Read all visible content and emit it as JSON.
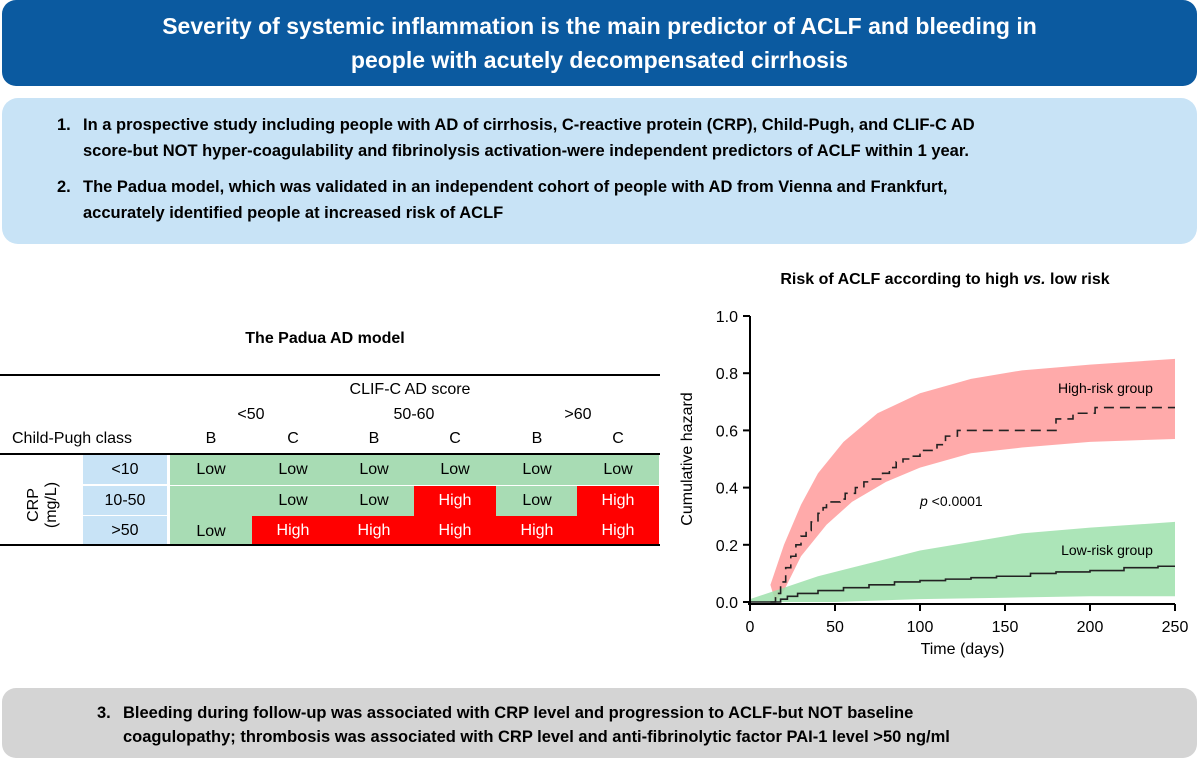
{
  "banner": {
    "title_line1": "Severity of systemic inflammation is the main predictor of ACLF and bleeding in",
    "title_line2": "people with acutely decompensated cirrhosis"
  },
  "findings": [
    {
      "num": "1.",
      "line1": "In a prospective study including people with AD of cirrhosis, C-reactive protein (CRP), Child-Pugh, and CLIF-C AD",
      "line2": "score-but NOT hyper-coagulability and fibrinolysis activation-were independent predictors of ACLF within 1 year."
    },
    {
      "num": "2.",
      "line1": "The Padua model, which was validated in an independent cohort of people with AD from Vienna and Frankfurt,",
      "line2": "accurately identified people at increased risk of ACLF"
    }
  ],
  "bottom_finding": {
    "num": "3.",
    "line1": "Bleeding during follow-up was associated with CRP level and progression to ACLF-but NOT baseline",
    "line2": "coagulopathy; thrombosis was associated with CRP level and anti-fibrinolytic factor PAI-1 level >50 ng/ml"
  },
  "model": {
    "title": "The Padua AD model",
    "score_header": "CLIF-C AD score",
    "score_groups": [
      "<50",
      "50-60",
      ">60"
    ],
    "row_header": "Child-Pugh class",
    "class_labels": [
      "B",
      "C",
      "B",
      "C",
      "B",
      "C"
    ],
    "crp_label_line1": "CRP",
    "crp_label_line2": "(mg/L)",
    "crp_levels": [
      "<10",
      "10-50",
      ">50"
    ],
    "low_text": "Low",
    "high_text": "High",
    "colors": {
      "low": "#a8dcb4",
      "high": "#ff0000",
      "crp": "#c8e3f6"
    }
  },
  "chart_data": {
    "type": "line",
    "title_part1": "Risk of ACLF according to high ",
    "title_italic": "vs.",
    "title_part2": " low risk",
    "xlabel": "Time (days)",
    "ylabel": "Cumulative hazard",
    "xlim": [
      0,
      250
    ],
    "ylim": [
      0,
      1.0
    ],
    "xticks": [
      0,
      50,
      100,
      150,
      200,
      250
    ],
    "yticks": [
      "0.0",
      "0.2",
      "0.4",
      "0.6",
      "0.8",
      "1.0"
    ],
    "annotation_p": "p",
    "annotation_rest": " <0.0001",
    "series": [
      {
        "name": "High-risk group",
        "color": "#ff9b9b",
        "step": [
          [
            12,
            0
          ],
          [
            15,
            0.03
          ],
          [
            18,
            0.07
          ],
          [
            21,
            0.12
          ],
          [
            24,
            0.16
          ],
          [
            27,
            0.2
          ],
          [
            30,
            0.23
          ],
          [
            33,
            0.25
          ],
          [
            36,
            0.28
          ],
          [
            40,
            0.31
          ],
          [
            43,
            0.33
          ],
          [
            45,
            0.35
          ],
          [
            50,
            0.35
          ],
          [
            53,
            0.36
          ],
          [
            56,
            0.38
          ],
          [
            62,
            0.4
          ],
          [
            67,
            0.42
          ],
          [
            72,
            0.43
          ],
          [
            78,
            0.45
          ],
          [
            82,
            0.47
          ],
          [
            86,
            0.49
          ],
          [
            90,
            0.5
          ],
          [
            95,
            0.51
          ],
          [
            100,
            0.53
          ],
          [
            110,
            0.55
          ],
          [
            115,
            0.58
          ],
          [
            122,
            0.6
          ],
          [
            180,
            0.64
          ],
          [
            190,
            0.66
          ],
          [
            203,
            0.68
          ],
          [
            250,
            0.68
          ]
        ],
        "band_upper": [
          [
            12,
            0.06
          ],
          [
            20,
            0.2
          ],
          [
            30,
            0.34
          ],
          [
            40,
            0.45
          ],
          [
            55,
            0.56
          ],
          [
            75,
            0.66
          ],
          [
            100,
            0.73
          ],
          [
            130,
            0.78
          ],
          [
            160,
            0.81
          ],
          [
            200,
            0.83
          ],
          [
            250,
            0.85
          ]
        ],
        "band_lower": [
          [
            15,
            0
          ],
          [
            20,
            0.04
          ],
          [
            30,
            0.16
          ],
          [
            45,
            0.27
          ],
          [
            60,
            0.35
          ],
          [
            80,
            0.42
          ],
          [
            100,
            0.47
          ],
          [
            130,
            0.52
          ],
          [
            160,
            0.54
          ],
          [
            200,
            0.56
          ],
          [
            250,
            0.57
          ]
        ]
      },
      {
        "name": "Low-risk group",
        "color": "#9de0ac",
        "step": [
          [
            0,
            0
          ],
          [
            15,
            0
          ],
          [
            18,
            0.01
          ],
          [
            22,
            0.02
          ],
          [
            28,
            0.03
          ],
          [
            40,
            0.04
          ],
          [
            55,
            0.05
          ],
          [
            70,
            0.06
          ],
          [
            85,
            0.07
          ],
          [
            100,
            0.075
          ],
          [
            115,
            0.08
          ],
          [
            130,
            0.085
          ],
          [
            145,
            0.09
          ],
          [
            165,
            0.1
          ],
          [
            180,
            0.105
          ],
          [
            200,
            0.11
          ],
          [
            220,
            0.12
          ],
          [
            240,
            0.125
          ],
          [
            250,
            0.125
          ]
        ],
        "band_upper": [
          [
            0,
            0.01
          ],
          [
            20,
            0.05
          ],
          [
            40,
            0.09
          ],
          [
            60,
            0.12
          ],
          [
            80,
            0.15
          ],
          [
            100,
            0.18
          ],
          [
            130,
            0.21
          ],
          [
            160,
            0.24
          ],
          [
            200,
            0.26
          ],
          [
            250,
            0.28
          ]
        ],
        "band_lower": [
          [
            0,
            0
          ],
          [
            50,
            0
          ],
          [
            100,
            0.01
          ],
          [
            150,
            0.015
          ],
          [
            200,
            0.02
          ],
          [
            250,
            0.02
          ]
        ]
      }
    ]
  }
}
